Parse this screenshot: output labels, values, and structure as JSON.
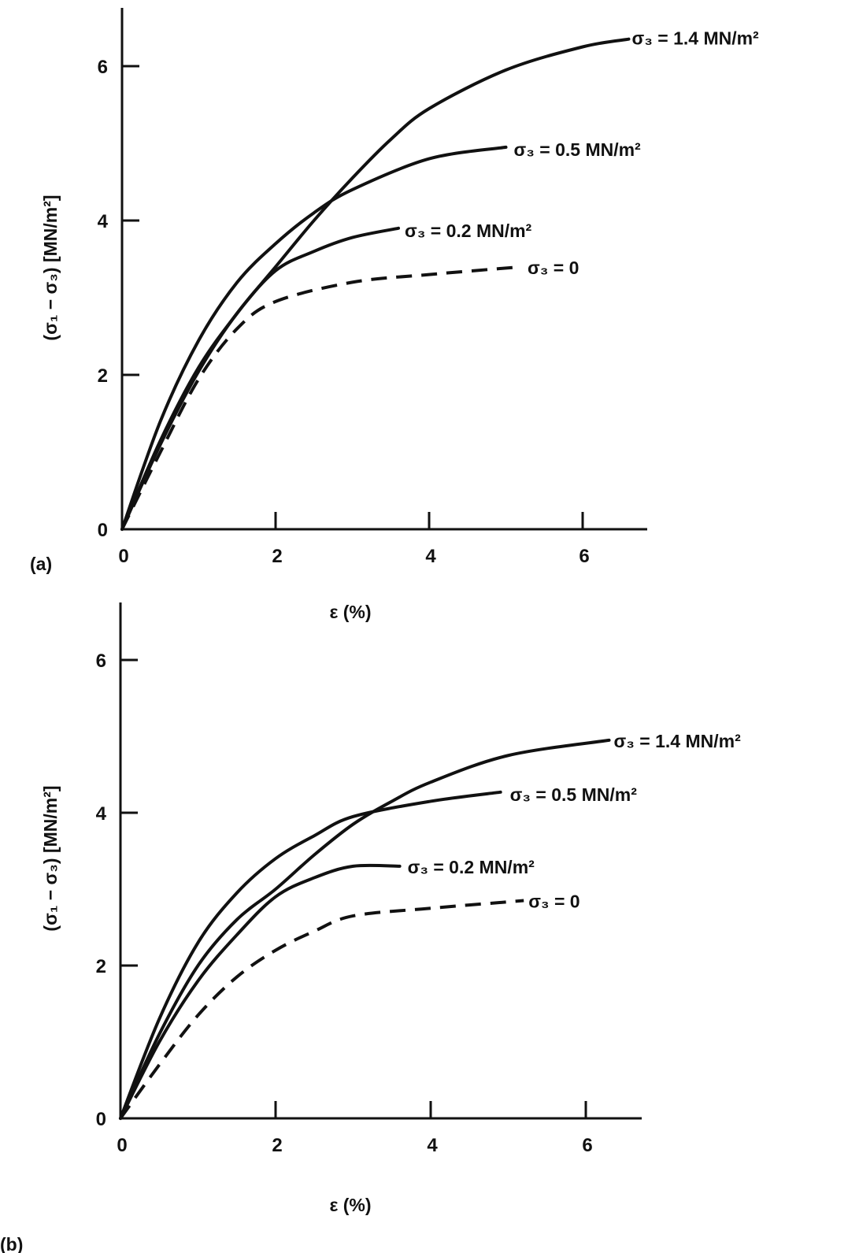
{
  "chart_data": [
    {
      "type": "line",
      "panel_label": "(a)",
      "xlabel": "ε (%)",
      "ylabel": "(σ₁ − σ₃) [MN/m²]",
      "xlim": [
        0,
        6.8
      ],
      "ylim": [
        0,
        6.8
      ],
      "xticks": [
        "0",
        "2",
        "4",
        "6"
      ],
      "yticks": [
        "0",
        "2",
        "4",
        "6"
      ],
      "grid": false,
      "series": [
        {
          "name": "σ₃ = 1.4 MN/m²",
          "style": "solid",
          "x": [
            0,
            0.5,
            1,
            1.5,
            2,
            2.5,
            3,
            3.5,
            4,
            5,
            6,
            6.6
          ],
          "y": [
            0,
            1.15,
            2.1,
            2.8,
            3.4,
            4.0,
            4.55,
            5.05,
            5.45,
            5.95,
            6.25,
            6.35
          ]
        },
        {
          "name": "σ₃ = 0.5 MN/m²",
          "style": "solid",
          "x": [
            0,
            0.5,
            1,
            1.5,
            2,
            2.5,
            3,
            4,
            5
          ],
          "y": [
            0,
            1.4,
            2.45,
            3.2,
            3.7,
            4.1,
            4.4,
            4.8,
            4.95
          ]
        },
        {
          "name": "σ₃ = 0.2 MN/m²",
          "style": "solid",
          "x": [
            0,
            0.5,
            1,
            1.5,
            2,
            2.5,
            3,
            3.6
          ],
          "y": [
            0,
            1.1,
            2.05,
            2.8,
            3.35,
            3.6,
            3.78,
            3.9
          ]
        },
        {
          "name": "σ₃ = 0",
          "style": "dashed",
          "x": [
            0,
            0.5,
            1,
            1.5,
            2,
            3,
            4,
            5.2
          ],
          "y": [
            0,
            1.0,
            1.95,
            2.6,
            2.95,
            3.2,
            3.3,
            3.4
          ]
        }
      ]
    },
    {
      "type": "line",
      "panel_label": "(b)",
      "xlabel": "ε (%)",
      "ylabel": "(σ₁ − σ₃) [MN/m²]",
      "xlim": [
        0,
        6.8
      ],
      "ylim": [
        0,
        6.8
      ],
      "xticks": [
        "0",
        "2",
        "4",
        "6"
      ],
      "yticks": [
        "0",
        "2",
        "4",
        "6"
      ],
      "grid": false,
      "series": [
        {
          "name": "σ₃ = 1.4 MN/m²",
          "style": "solid",
          "x": [
            0,
            0.5,
            1,
            1.5,
            2,
            2.5,
            3,
            3.5,
            4,
            5,
            6.3
          ],
          "y": [
            0,
            1.1,
            2.0,
            2.6,
            3.0,
            3.45,
            3.85,
            4.15,
            4.4,
            4.75,
            4.95
          ]
        },
        {
          "name": "σ₃ = 0.5 MN/m²",
          "style": "solid",
          "x": [
            0,
            0.5,
            1,
            1.5,
            2,
            2.5,
            3,
            4,
            4.9
          ],
          "y": [
            0,
            1.3,
            2.3,
            2.95,
            3.4,
            3.7,
            3.95,
            4.15,
            4.27
          ]
        },
        {
          "name": "σ₃ = 0.2 MN/m²",
          "style": "solid",
          "x": [
            0,
            0.5,
            1,
            1.5,
            2,
            2.5,
            3,
            3.6
          ],
          "y": [
            0,
            1.0,
            1.8,
            2.4,
            2.9,
            3.15,
            3.3,
            3.3
          ]
        },
        {
          "name": "σ₃ = 0",
          "style": "dashed",
          "x": [
            0,
            0.5,
            1,
            1.5,
            2,
            2.5,
            3,
            4,
            5.2
          ],
          "y": [
            0,
            0.7,
            1.35,
            1.85,
            2.2,
            2.45,
            2.65,
            2.75,
            2.85
          ]
        }
      ]
    }
  ]
}
